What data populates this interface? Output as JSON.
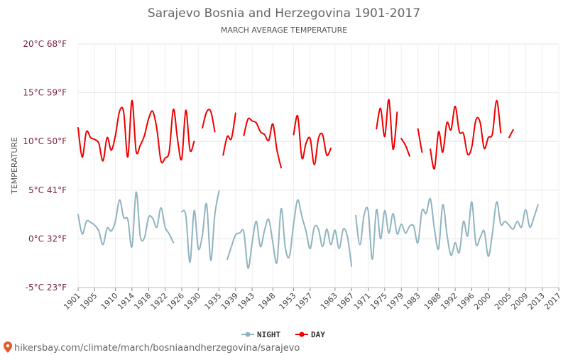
{
  "chart_data": {
    "type": "line",
    "title": "Sarajevo Bosnia and Herzegovina 1901-2017",
    "subtitle": "MARCH AVERAGE TEMPERATURE",
    "ylabel": "TEMPERATURE",
    "ylim": [
      -5,
      20
    ],
    "y_ticks": [
      {
        "value": 20,
        "label": "20°C 68°F"
      },
      {
        "value": 15,
        "label": "15°C 59°F"
      },
      {
        "value": 10,
        "label": "10°C 50°F"
      },
      {
        "value": 5,
        "label": "5°C 41°F"
      },
      {
        "value": 0,
        "label": "0°C 32°F"
      },
      {
        "value": -5,
        "label": "-5°C 23°F"
      }
    ],
    "xlim": [
      1901,
      2017
    ],
    "x_ticks": [
      1901,
      1905,
      1910,
      1914,
      1918,
      1922,
      1926,
      1930,
      1935,
      1939,
      1943,
      1948,
      1953,
      1957,
      1963,
      1967,
      1971,
      1975,
      1979,
      1983,
      1988,
      1992,
      1996,
      2000,
      2005,
      2009,
      2013,
      2017
    ],
    "grid": true,
    "legend_position": "bottom",
    "series": [
      {
        "name": "NIGHT",
        "color": "#90b4bf",
        "segments": [
          [
            [
              1901,
              2.5
            ],
            [
              1902,
              0.5
            ],
            [
              1903,
              1.8
            ],
            [
              1904,
              1.7
            ],
            [
              1905,
              1.4
            ],
            [
              1906,
              0.8
            ],
            [
              1907,
              -0.6
            ],
            [
              1908,
              1.1
            ],
            [
              1909,
              0.8
            ],
            [
              1910,
              1.8
            ],
            [
              1911,
              4.0
            ],
            [
              1912,
              2.2
            ],
            [
              1913,
              2.0
            ],
            [
              1914,
              -0.8
            ],
            [
              1915,
              4.8
            ],
            [
              1916,
              0.3
            ],
            [
              1917,
              0.1
            ],
            [
              1918,
              2.2
            ],
            [
              1919,
              2.1
            ],
            [
              1920,
              1.2
            ],
            [
              1921,
              3.2
            ],
            [
              1922,
              1.2
            ],
            [
              1923,
              0.5
            ],
            [
              1924,
              -0.4
            ]
          ],
          [
            [
              1926,
              2.8
            ],
            [
              1927,
              2.4
            ],
            [
              1928,
              -2.4
            ],
            [
              1929,
              2.9
            ],
            [
              1930,
              -1.0
            ],
            [
              1931,
              0.4
            ],
            [
              1932,
              3.6
            ],
            [
              1933,
              -2.2
            ],
            [
              1934,
              2.5
            ],
            [
              1935,
              4.9
            ]
          ],
          [
            [
              1937,
              -2.1
            ],
            [
              1938,
              -0.8
            ],
            [
              1939,
              0.4
            ],
            [
              1940,
              0.6
            ],
            [
              1941,
              0.7
            ],
            [
              1942,
              -3.0
            ],
            [
              1943,
              -0.4
            ],
            [
              1944,
              1.8
            ],
            [
              1945,
              -0.8
            ],
            [
              1946,
              0.9
            ],
            [
              1947,
              2.0
            ],
            [
              1948,
              -0.4
            ],
            [
              1949,
              -2.4
            ],
            [
              1950,
              3.1
            ],
            [
              1951,
              -0.9
            ],
            [
              1952,
              -1.8
            ],
            [
              1953,
              1.5
            ],
            [
              1954,
              4.0
            ],
            [
              1955,
              2.3
            ],
            [
              1956,
              0.8
            ],
            [
              1957,
              -1.0
            ],
            [
              1958,
              1.2
            ],
            [
              1959,
              1.0
            ],
            [
              1960,
              -0.8
            ],
            [
              1961,
              1.0
            ],
            [
              1962,
              -0.6
            ],
            [
              1963,
              0.9
            ],
            [
              1964,
              -1.0
            ],
            [
              1965,
              1.0
            ],
            [
              1966,
              0.2
            ],
            [
              1967,
              -2.8
            ]
          ],
          [
            [
              1968,
              2.4
            ],
            [
              1969,
              -0.6
            ],
            [
              1970,
              2.4
            ],
            [
              1971,
              2.9
            ],
            [
              1972,
              -2.1
            ],
            [
              1973,
              3.0
            ],
            [
              1974,
              0.0
            ],
            [
              1975,
              2.9
            ],
            [
              1976,
              0.6
            ],
            [
              1977,
              2.6
            ],
            [
              1978,
              0.5
            ],
            [
              1979,
              1.5
            ],
            [
              1980,
              0.6
            ],
            [
              1981,
              1.3
            ],
            [
              1982,
              1.3
            ],
            [
              1983,
              -0.4
            ],
            [
              1984,
              2.9
            ],
            [
              1985,
              2.6
            ],
            [
              1986,
              4.1
            ],
            [
              1987,
              1.0
            ],
            [
              1988,
              -1.0
            ],
            [
              1989,
              3.5
            ],
            [
              1990,
              0.5
            ],
            [
              1991,
              -1.7
            ],
            [
              1992,
              -0.4
            ],
            [
              1993,
              -1.4
            ],
            [
              1994,
              1.8
            ],
            [
              1995,
              0.3
            ],
            [
              1996,
              3.8
            ],
            [
              1997,
              -0.5
            ],
            [
              1998,
              0.1
            ],
            [
              1999,
              0.8
            ],
            [
              2000,
              -1.8
            ],
            [
              2001,
              0.6
            ],
            [
              2002,
              3.8
            ],
            [
              2003,
              1.5
            ],
            [
              2004,
              1.8
            ],
            [
              2005,
              1.4
            ],
            [
              2006,
              1.0
            ],
            [
              2007,
              1.8
            ],
            [
              2008,
              1.2
            ],
            [
              2009,
              3.0
            ],
            [
              2010,
              1.2
            ],
            [
              2011,
              2.2
            ],
            [
              2012,
              3.5
            ]
          ]
        ]
      },
      {
        "name": "DAY",
        "color": "#ee0000",
        "segments": [
          [
            [
              1901,
              11.4
            ],
            [
              1902,
              8.4
            ],
            [
              1903,
              11.0
            ],
            [
              1904,
              10.4
            ],
            [
              1905,
              10.2
            ],
            [
              1906,
              9.8
            ],
            [
              1907,
              8.0
            ],
            [
              1908,
              10.4
            ],
            [
              1909,
              9.1
            ],
            [
              1910,
              10.6
            ],
            [
              1911,
              13.1
            ],
            [
              1912,
              13.0
            ],
            [
              1913,
              8.4
            ],
            [
              1914,
              14.2
            ],
            [
              1915,
              9.0
            ],
            [
              1916,
              9.6
            ],
            [
              1917,
              10.6
            ],
            [
              1918,
              12.3
            ],
            [
              1919,
              13.1
            ],
            [
              1920,
              11.3
            ],
            [
              1921,
              8.0
            ],
            [
              1922,
              8.3
            ],
            [
              1923,
              9.0
            ],
            [
              1924,
              13.3
            ],
            [
              1925,
              10.2
            ],
            [
              1926,
              8.2
            ],
            [
              1927,
              13.2
            ],
            [
              1928,
              9.1
            ],
            [
              1929,
              10.0
            ]
          ],
          [
            [
              1931,
              11.4
            ],
            [
              1932,
              13.0
            ],
            [
              1933,
              13.1
            ],
            [
              1934,
              11.0
            ]
          ],
          [
            [
              1936,
              8.6
            ],
            [
              1937,
              10.5
            ],
            [
              1938,
              10.3
            ],
            [
              1939,
              12.9
            ]
          ],
          [
            [
              1941,
              10.6
            ],
            [
              1942,
              12.3
            ],
            [
              1943,
              12.1
            ],
            [
              1944,
              11.9
            ],
            [
              1945,
              11.0
            ],
            [
              1946,
              10.7
            ],
            [
              1947,
              10.1
            ],
            [
              1948,
              11.8
            ],
            [
              1949,
              9.1
            ],
            [
              1950,
              7.3
            ]
          ],
          [
            [
              1953,
              10.7
            ],
            [
              1954,
              12.6
            ],
            [
              1955,
              8.3
            ],
            [
              1956,
              9.8
            ],
            [
              1957,
              10.3
            ],
            [
              1958,
              7.6
            ],
            [
              1959,
              10.3
            ],
            [
              1960,
              10.7
            ],
            [
              1961,
              8.6
            ],
            [
              1962,
              9.3
            ]
          ],
          [
            [
              1973,
              11.3
            ],
            [
              1974,
              13.4
            ],
            [
              1975,
              10.5
            ],
            [
              1976,
              14.3
            ],
            [
              1977,
              9.2
            ],
            [
              1978,
              13.0
            ]
          ],
          [
            [
              1979,
              10.3
            ],
            [
              1980,
              9.6
            ],
            [
              1981,
              8.5
            ]
          ],
          [
            [
              1983,
              11.3
            ],
            [
              1984,
              8.9
            ]
          ],
          [
            [
              1986,
              9.2
            ],
            [
              1987,
              7.2
            ],
            [
              1988,
              11.0
            ],
            [
              1989,
              8.9
            ],
            [
              1990,
              11.9
            ],
            [
              1991,
              11.2
            ],
            [
              1992,
              13.6
            ],
            [
              1993,
              11.0
            ],
            [
              1994,
              10.8
            ],
            [
              1995,
              8.7
            ],
            [
              1996,
              9.4
            ],
            [
              1997,
              12.2
            ],
            [
              1998,
              12.0
            ],
            [
              1999,
              9.3
            ],
            [
              2000,
              10.4
            ],
            [
              2001,
              10.8
            ],
            [
              2002,
              14.2
            ],
            [
              2003,
              10.9
            ]
          ],
          [
            [
              2005,
              10.4
            ],
            [
              2006,
              11.2
            ]
          ]
        ]
      }
    ]
  },
  "footer": {
    "source_text": "hikersbay.com/climate/march/bosniaandherzegovina/sarajevo"
  }
}
